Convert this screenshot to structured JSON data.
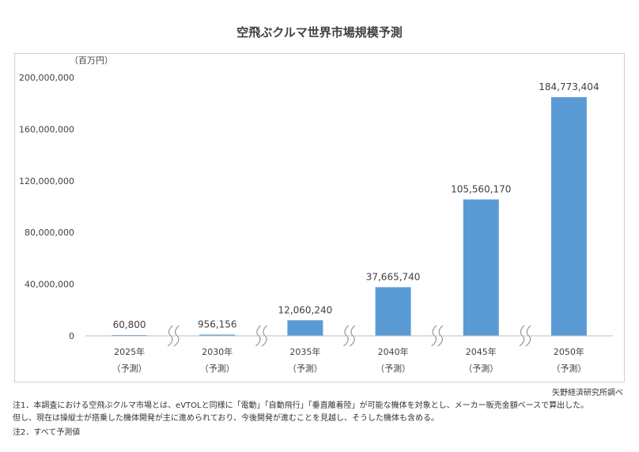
{
  "chart_data": {
    "type": "bar",
    "title": "空飛ぶクルマ世界市場規模予測",
    "unit_label": "（百万円）",
    "categories": [
      "2025年",
      "2030年",
      "2035年",
      "2040年",
      "2045年",
      "2050年"
    ],
    "category_sublabels": [
      "（予測）",
      "（予測）",
      "（予測）",
      "（予測）",
      "（予測）",
      "（予測）"
    ],
    "values": [
      60800,
      956156,
      12060240,
      37665740,
      105560170,
      184773404
    ],
    "value_labels": [
      "60,800",
      "956,156",
      "12,060,240",
      "37,665,740",
      "105,560,170",
      "184,773,404"
    ],
    "ylim": [
      0,
      200000000
    ],
    "yticks": [
      0,
      40000000,
      80000000,
      120000000,
      160000000,
      200000000
    ],
    "ytick_labels": [
      "0",
      "40,000,000",
      "80,000,000",
      "120,000,000",
      "160,000,000",
      "200,000,000"
    ],
    "xlabel": "",
    "ylabel": "",
    "axis_break_marks": true,
    "grid": false,
    "bar_color": "#5b9bd5"
  },
  "source": "矢野経済研究所調べ",
  "notes": {
    "note1_line1": "注1．本調査における空飛ぶクルマ市場とは、eVTOLと同様に「電動」「自動飛行」「垂直離着陸」が可能な機体を対象とし、メーカー販売金額ベースで算出した。",
    "note1_line2": "但し、現在は操縦士が搭乗した機体開発が主に進められており、今後開発が進むことを見越し、そうした機体も含める。",
    "note2": "注2．すべて予測値"
  }
}
